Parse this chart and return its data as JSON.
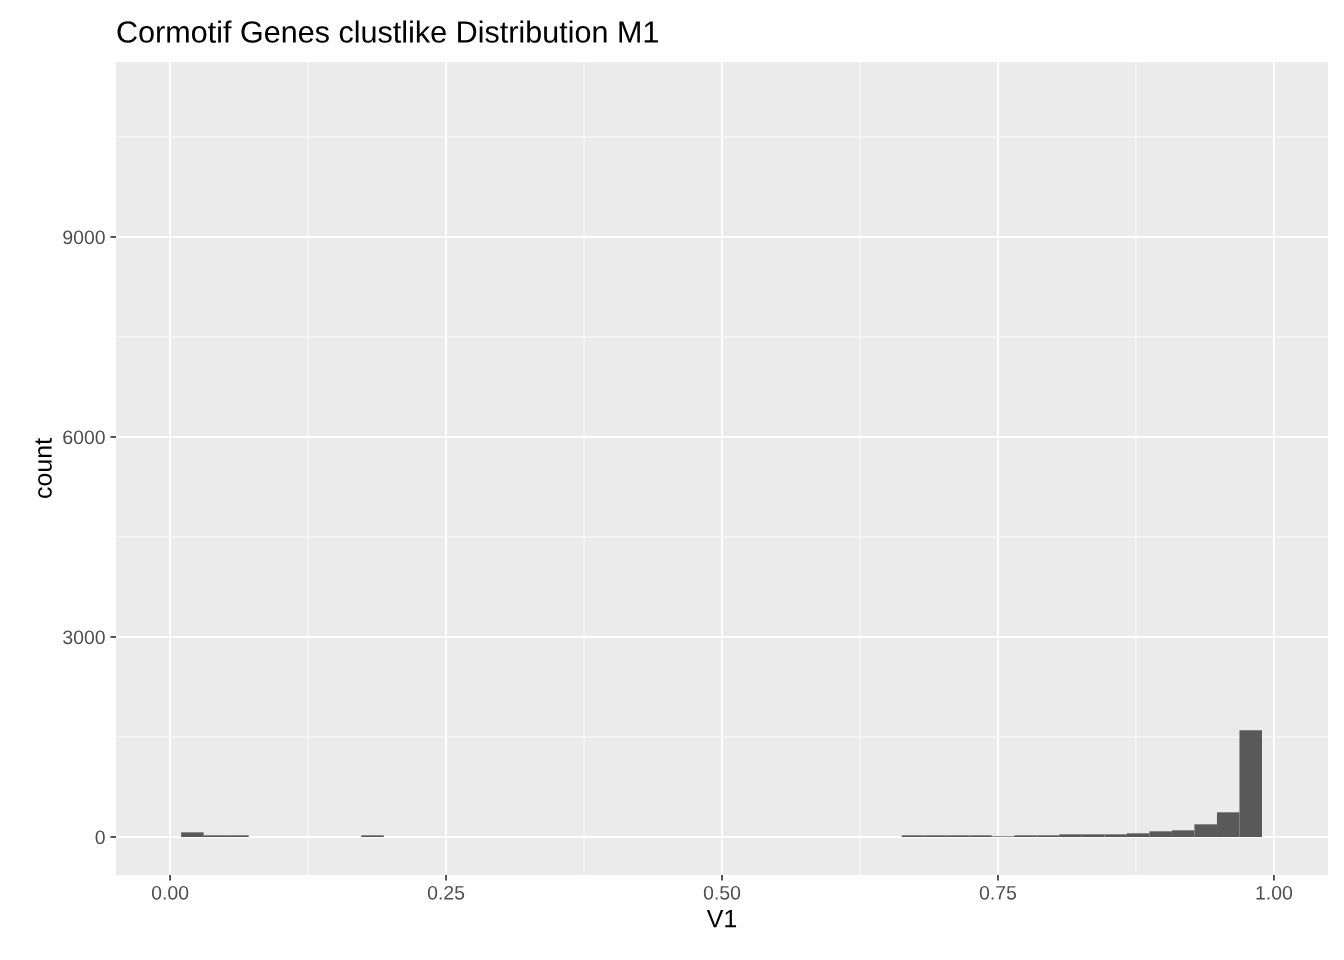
{
  "chart_data": {
    "type": "histogram",
    "title": "Cormotif Genes clustlike Distribution M1",
    "xlabel": "V1",
    "ylabel": "count",
    "bins": [
      0.01,
      0.0304,
      0.0508,
      0.0712,
      0.0916,
      0.112,
      0.1324,
      0.1528,
      0.1732,
      0.1936,
      0.214,
      0.2344,
      0.2548,
      0.2752,
      0.2956,
      0.316,
      0.3364,
      0.3568,
      0.3772,
      0.3976,
      0.418,
      0.4384,
      0.4588,
      0.4792,
      0.4996,
      0.52,
      0.5404,
      0.5608,
      0.5812,
      0.6016,
      0.622,
      0.6424,
      0.6628,
      0.6832,
      0.7036,
      0.724,
      0.7444,
      0.7648,
      0.7852,
      0.8056,
      0.826,
      0.8464,
      0.8668,
      0.8872,
      0.9076,
      0.928,
      0.9484,
      0.9688,
      0.9892
    ],
    "values": [
      70,
      25,
      25,
      0,
      0,
      0,
      0,
      0,
      25,
      0,
      0,
      0,
      0,
      0,
      0,
      0,
      0,
      0,
      0,
      0,
      0,
      0,
      0,
      0,
      0,
      0,
      0,
      0,
      0,
      0,
      0,
      0,
      25,
      25,
      25,
      25,
      10,
      25,
      25,
      40,
      40,
      40,
      55,
      85,
      100,
      190,
      370,
      1600
    ],
    "color": "#595959",
    "xlim": [
      -0.049,
      1.049
    ],
    "xticks": [
      {
        "value": 0,
        "label": "0.00"
      },
      {
        "value": 0.25,
        "label": "0.25"
      },
      {
        "value": 0.5,
        "label": "0.50"
      },
      {
        "value": 0.75,
        "label": "0.75"
      },
      {
        "value": 1,
        "label": "1.00"
      }
    ],
    "ylim": [
      -570,
      11625
    ],
    "yticks": [
      0,
      3000,
      6000,
      9000
    ],
    "grid": true
  }
}
